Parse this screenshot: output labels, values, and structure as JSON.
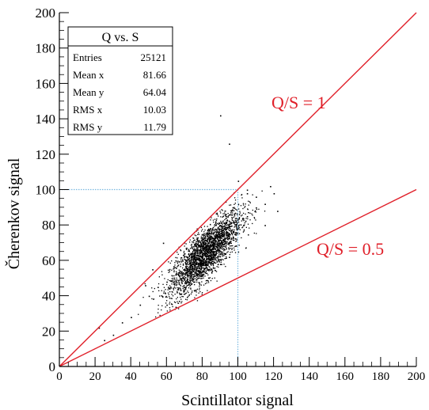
{
  "chart_data": {
    "type": "scatter",
    "title": "",
    "xlabel": "Scintillator signal",
    "ylabel": "Čherenkov signal",
    "xlim": [
      0,
      200
    ],
    "ylim": [
      0,
      200
    ],
    "x_ticks": [
      0,
      20,
      40,
      60,
      80,
      100,
      120,
      140,
      160,
      180,
      200
    ],
    "y_ticks": [
      0,
      20,
      40,
      60,
      80,
      100,
      120,
      140,
      160,
      180,
      200
    ],
    "x_tick_labels": [
      "0",
      "20",
      "40",
      "60",
      "80",
      "100",
      "120",
      "140",
      "160",
      "180",
      "200"
    ],
    "y_tick_labels": [
      "0",
      "20",
      "40",
      "60",
      "80",
      "100",
      "120",
      "140",
      "160",
      "180",
      "200"
    ],
    "grid": false,
    "stats_box": {
      "title": "Q vs. S",
      "rows": [
        {
          "label": "Entries",
          "value": "25121"
        },
        {
          "label": "Mean x",
          "value": "81.66"
        },
        {
          "label": "Mean y",
          "value": "64.04"
        },
        {
          "label": "RMS x",
          "value": "10.03"
        },
        {
          "label": "RMS y",
          "value": "11.79"
        }
      ]
    },
    "reference_lines": [
      {
        "label": "Q/S = 1",
        "slope": 1,
        "color": "#e0202a",
        "x": [
          0,
          200
        ],
        "y": [
          0,
          200
        ]
      },
      {
        "label": "Q/S = 0.5",
        "slope": 0.5,
        "color": "#e0202a",
        "x": [
          0,
          200
        ],
        "y": [
          0,
          100
        ]
      }
    ],
    "marker_lines": [
      {
        "orientation": "horizontal",
        "value": 100,
        "from": 0,
        "to": 100,
        "color": "#7ab8e0",
        "style": "dotted"
      },
      {
        "orientation": "vertical",
        "value": 100,
        "from": 0,
        "to": 100,
        "color": "#7ab8e0",
        "style": "dotted"
      }
    ],
    "series": [
      {
        "points_summary": {
          "entries": 25121,
          "mean_x": 81.66,
          "mean_y": 64.04,
          "rms_x": 10.03,
          "rms_y": 11.79
        },
        "cluster_center": [
          80,
          62
        ],
        "core_points": [
          [
            55,
            45
          ],
          [
            60,
            48
          ],
          [
            65,
            52
          ],
          [
            70,
            55
          ],
          [
            75,
            58
          ],
          [
            80,
            62
          ],
          [
            85,
            66
          ],
          [
            90,
            70
          ],
          [
            95,
            75
          ],
          [
            100,
            80
          ],
          [
            105,
            85
          ],
          [
            110,
            90
          ],
          [
            65,
            60
          ],
          [
            70,
            64
          ],
          [
            75,
            68
          ],
          [
            80,
            72
          ],
          [
            85,
            76
          ],
          [
            90,
            80
          ],
          [
            95,
            86
          ],
          [
            100,
            92
          ],
          [
            105,
            98
          ],
          [
            70,
            45
          ],
          [
            75,
            48
          ],
          [
            80,
            52
          ],
          [
            85,
            55
          ],
          [
            90,
            58
          ],
          [
            95,
            62
          ],
          [
            100,
            65
          ]
        ],
        "outlier_points": [
          [
            22,
            22
          ],
          [
            30,
            18
          ],
          [
            35,
            25
          ],
          [
            40,
            28
          ],
          [
            45,
            35
          ],
          [
            50,
            40
          ],
          [
            48,
            46
          ],
          [
            90,
            142
          ],
          [
            95,
            126
          ],
          [
            100,
            105
          ],
          [
            105,
            100
          ],
          [
            110,
            96
          ],
          [
            115,
            92
          ],
          [
            120,
            98
          ],
          [
            122,
            88
          ],
          [
            60,
            35
          ],
          [
            58,
            70
          ],
          [
            52,
            55
          ],
          [
            115,
            80
          ],
          [
            118,
            102
          ],
          [
            25,
            15
          ]
        ]
      }
    ],
    "axis_color": "#000000",
    "point_color": "#000000"
  }
}
